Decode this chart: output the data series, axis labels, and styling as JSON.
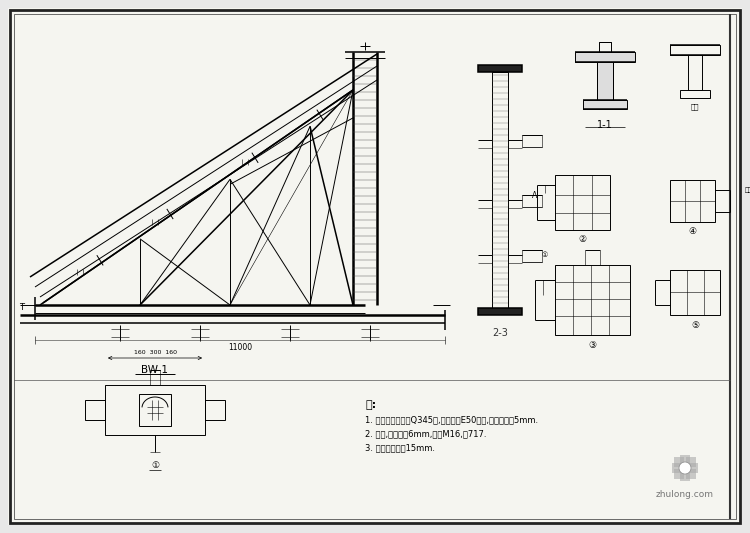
{
  "bg_color": "#e8e8e8",
  "paper_color": "#f5f5f0",
  "line_color": "#000000",
  "notes_title": "注:",
  "notes": [
    "1. 钢材、焊条选用Q345钢,焊条采用E50系列,焊缝高度为5mm.",
    "2. 螺栓,抗剪栓钉6mm,螺栓M16,共717.",
    "3. 钢结构涂料约15mm."
  ],
  "label_BW1": "BW-1",
  "label_11": "1-1",
  "label_22": "2-3",
  "watermark_text": "zhulong.com"
}
